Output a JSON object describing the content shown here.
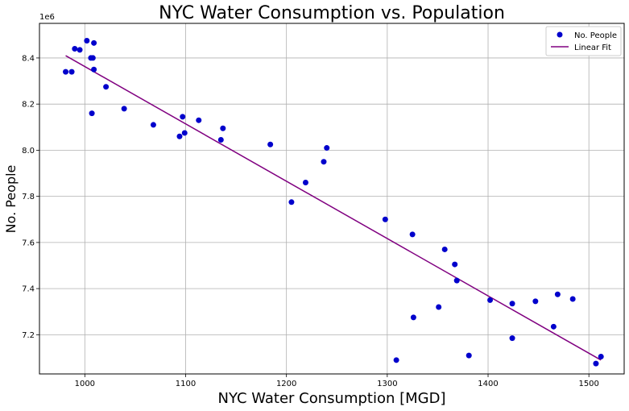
{
  "chart_data": {
    "type": "scatter",
    "title": "NYC Water Consumption vs. Population",
    "xlabel": "NYC Water Consumption [MGD]",
    "ylabel": "No. People",
    "y_offset_label": "1e6",
    "xlim": [
      955,
      1535
    ],
    "ylim": [
      7.03,
      8.55
    ],
    "xticks": [
      1000,
      1100,
      1200,
      1300,
      1400,
      1500
    ],
    "xtick_labels": [
      "1000",
      "1100",
      "1200",
      "1300",
      "1400",
      "1500"
    ],
    "yticks": [
      7.2,
      7.4,
      7.6,
      7.8,
      8.0,
      8.2,
      8.4
    ],
    "ytick_labels": [
      "7.2",
      "7.4",
      "7.6",
      "7.8",
      "8.0",
      "8.2",
      "8.4"
    ],
    "grid": true,
    "legend_position": "top-right",
    "series": [
      {
        "name": "No. People",
        "kind": "scatter",
        "color": "#0000cc",
        "points": [
          [
            981,
            8.34
          ],
          [
            987,
            8.34
          ],
          [
            990,
            8.44
          ],
          [
            995,
            8.435
          ],
          [
            1002,
            8.475
          ],
          [
            1006,
            8.4
          ],
          [
            1008,
            8.4
          ],
          [
            1009,
            8.465
          ],
          [
            1009,
            8.35
          ],
          [
            1007,
            8.16
          ],
          [
            1021,
            8.275
          ],
          [
            1039,
            8.18
          ],
          [
            1068,
            8.11
          ],
          [
            1094,
            8.06
          ],
          [
            1097,
            8.145
          ],
          [
            1099,
            8.075
          ],
          [
            1113,
            8.13
          ],
          [
            1135,
            8.045
          ],
          [
            1137,
            8.095
          ],
          [
            1184,
            8.025
          ],
          [
            1205,
            7.775
          ],
          [
            1219,
            7.86
          ],
          [
            1237,
            7.95
          ],
          [
            1240,
            8.01
          ],
          [
            1298,
            7.7
          ],
          [
            1309,
            7.09
          ],
          [
            1325,
            7.635
          ],
          [
            1326,
            7.275
          ],
          [
            1351,
            7.32
          ],
          [
            1357,
            7.57
          ],
          [
            1367,
            7.505
          ],
          [
            1369,
            7.435
          ],
          [
            1381,
            7.11
          ],
          [
            1402,
            7.35
          ],
          [
            1424,
            7.335
          ],
          [
            1424,
            7.185
          ],
          [
            1447,
            7.345
          ],
          [
            1465,
            7.235
          ],
          [
            1469,
            7.375
          ],
          [
            1484,
            7.355
          ],
          [
            1507,
            7.075
          ],
          [
            1512,
            7.105
          ]
        ]
      },
      {
        "name": "Linear Fit",
        "kind": "line",
        "color": "#800080",
        "points": [
          [
            981,
            8.41
          ],
          [
            1512,
            7.09
          ]
        ]
      }
    ]
  }
}
